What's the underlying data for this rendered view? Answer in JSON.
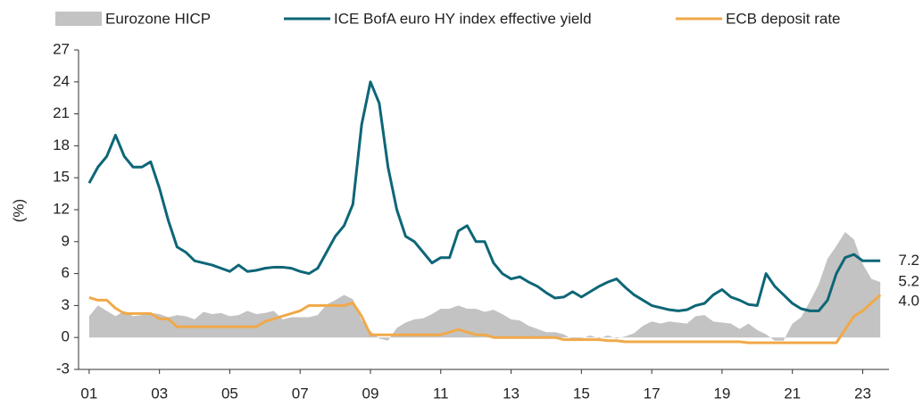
{
  "chart_data": {
    "type": "line",
    "ylabel": "(%)",
    "xlim": [
      2000.8,
      2023.75
    ],
    "ylim": [
      -3,
      27
    ],
    "yticks": [
      -3,
      0,
      3,
      6,
      9,
      12,
      15,
      18,
      21,
      24,
      27
    ],
    "xticks": [
      {
        "value": 2001,
        "label": "01"
      },
      {
        "value": 2003,
        "label": "03"
      },
      {
        "value": 2005,
        "label": "05"
      },
      {
        "value": 2007,
        "label": "07"
      },
      {
        "value": 2009,
        "label": "09"
      },
      {
        "value": 2011,
        "label": "11"
      },
      {
        "value": 2013,
        "label": "13"
      },
      {
        "value": 2015,
        "label": "15"
      },
      {
        "value": 2017,
        "label": "17"
      },
      {
        "value": 2019,
        "label": "19"
      },
      {
        "value": 2021,
        "label": "21"
      },
      {
        "value": 2023,
        "label": "23"
      }
    ],
    "grid": false,
    "legend": "top",
    "x": [
      2001,
      2001.25,
      2001.5,
      2001.75,
      2002,
      2002.25,
      2002.5,
      2002.75,
      2003,
      2003.25,
      2003.5,
      2003.75,
      2004,
      2004.25,
      2004.5,
      2004.75,
      2005,
      2005.25,
      2005.5,
      2005.75,
      2006,
      2006.25,
      2006.5,
      2006.75,
      2007,
      2007.25,
      2007.5,
      2007.75,
      2008,
      2008.25,
      2008.5,
      2008.75,
      2009,
      2009.25,
      2009.5,
      2009.75,
      2010,
      2010.25,
      2010.5,
      2010.75,
      2011,
      2011.25,
      2011.5,
      2011.75,
      2012,
      2012.25,
      2012.5,
      2012.75,
      2013,
      2013.25,
      2013.5,
      2013.75,
      2014,
      2014.25,
      2014.5,
      2014.75,
      2015,
      2015.25,
      2015.5,
      2015.75,
      2016,
      2016.25,
      2016.5,
      2016.75,
      2017,
      2017.25,
      2017.5,
      2017.75,
      2018,
      2018.25,
      2018.5,
      2018.75,
      2019,
      2019.25,
      2019.5,
      2019.75,
      2020,
      2020.25,
      2020.5,
      2020.75,
      2021,
      2021.25,
      2021.5,
      2021.75,
      2022,
      2022.25,
      2022.5,
      2022.75,
      2023,
      2023.25,
      2023.5
    ],
    "series": [
      {
        "name": "Eurozone HICP",
        "kind": "area",
        "color": "#c3c3c3",
        "end_label": "5.2",
        "values": [
          2.0,
          3.0,
          2.5,
          2.0,
          2.5,
          2.0,
          2.1,
          2.3,
          2.2,
          1.9,
          2.1,
          2.0,
          1.7,
          2.4,
          2.2,
          2.3,
          2.0,
          2.1,
          2.5,
          2.2,
          2.3,
          2.5,
          1.7,
          1.9,
          1.9,
          1.9,
          2.1,
          3.1,
          3.5,
          4.0,
          3.6,
          1.6,
          0.6,
          -0.1,
          -0.3,
          0.9,
          1.4,
          1.7,
          1.8,
          2.2,
          2.7,
          2.7,
          3.0,
          2.7,
          2.7,
          2.4,
          2.6,
          2.2,
          1.7,
          1.6,
          1.1,
          0.8,
          0.5,
          0.5,
          0.3,
          -0.2,
          -0.1,
          0.2,
          -0.1,
          0.2,
          -0.1,
          0.1,
          0.4,
          1.1,
          1.5,
          1.3,
          1.5,
          1.4,
          1.3,
          2.0,
          2.1,
          1.5,
          1.4,
          1.3,
          0.8,
          1.3,
          0.7,
          0.3,
          -0.3,
          -0.3,
          1.3,
          1.9,
          3.4,
          5.0,
          7.4,
          8.6,
          9.9,
          9.2,
          6.9,
          5.5,
          5.2
        ]
      },
      {
        "name": "ICE BofA euro HY index effective yield",
        "kind": "line",
        "color": "#0d6677",
        "end_label": "7.2",
        "values": [
          14.5,
          16,
          17,
          19,
          17,
          16,
          16,
          16.5,
          14,
          11,
          8.5,
          8,
          7.2,
          7,
          6.8,
          6.5,
          6.2,
          6.8,
          6.2,
          6.3,
          6.5,
          6.6,
          6.6,
          6.5,
          6.2,
          6.0,
          6.5,
          8.0,
          9.5,
          10.5,
          12.5,
          20,
          24,
          22,
          16,
          12,
          9.5,
          9,
          8,
          7,
          7.5,
          7.5,
          10,
          10.5,
          9,
          9,
          7,
          6,
          5.5,
          5.7,
          5.2,
          4.8,
          4.2,
          3.7,
          3.8,
          4.3,
          3.8,
          4.3,
          4.8,
          5.2,
          5.5,
          4.7,
          4.0,
          3.5,
          3.0,
          2.8,
          2.6,
          2.5,
          2.6,
          3.0,
          3.2,
          4.0,
          4.5,
          3.8,
          3.5,
          3.1,
          3.0,
          6.0,
          4.8,
          4.0,
          3.2,
          2.7,
          2.5,
          2.5,
          3.5,
          6.0,
          7.5,
          7.8,
          7.2,
          7.2,
          7.2
        ]
      },
      {
        "name": "ECB deposit rate",
        "kind": "line",
        "color": "#f0a94a",
        "end_label": "4.0",
        "values": [
          3.75,
          3.5,
          3.5,
          2.75,
          2.25,
          2.25,
          2.25,
          2.25,
          1.75,
          1.75,
          1.0,
          1.0,
          1.0,
          1.0,
          1.0,
          1.0,
          1.0,
          1.0,
          1.0,
          1.0,
          1.5,
          1.75,
          2.0,
          2.25,
          2.5,
          3.0,
          3.0,
          3.0,
          3.0,
          3.0,
          3.25,
          2.0,
          0.25,
          0.25,
          0.25,
          0.25,
          0.25,
          0.25,
          0.25,
          0.25,
          0.25,
          0.5,
          0.75,
          0.5,
          0.25,
          0.25,
          0,
          0,
          0,
          0,
          0,
          0,
          0,
          0,
          -0.2,
          -0.2,
          -0.2,
          -0.2,
          -0.2,
          -0.3,
          -0.3,
          -0.4,
          -0.4,
          -0.4,
          -0.4,
          -0.4,
          -0.4,
          -0.4,
          -0.4,
          -0.4,
          -0.4,
          -0.4,
          -0.4,
          -0.4,
          -0.4,
          -0.5,
          -0.5,
          -0.5,
          -0.5,
          -0.5,
          -0.5,
          -0.5,
          -0.5,
          -0.5,
          -0.5,
          -0.5,
          0.75,
          2.0,
          2.5,
          3.25,
          4.0
        ]
      }
    ]
  }
}
